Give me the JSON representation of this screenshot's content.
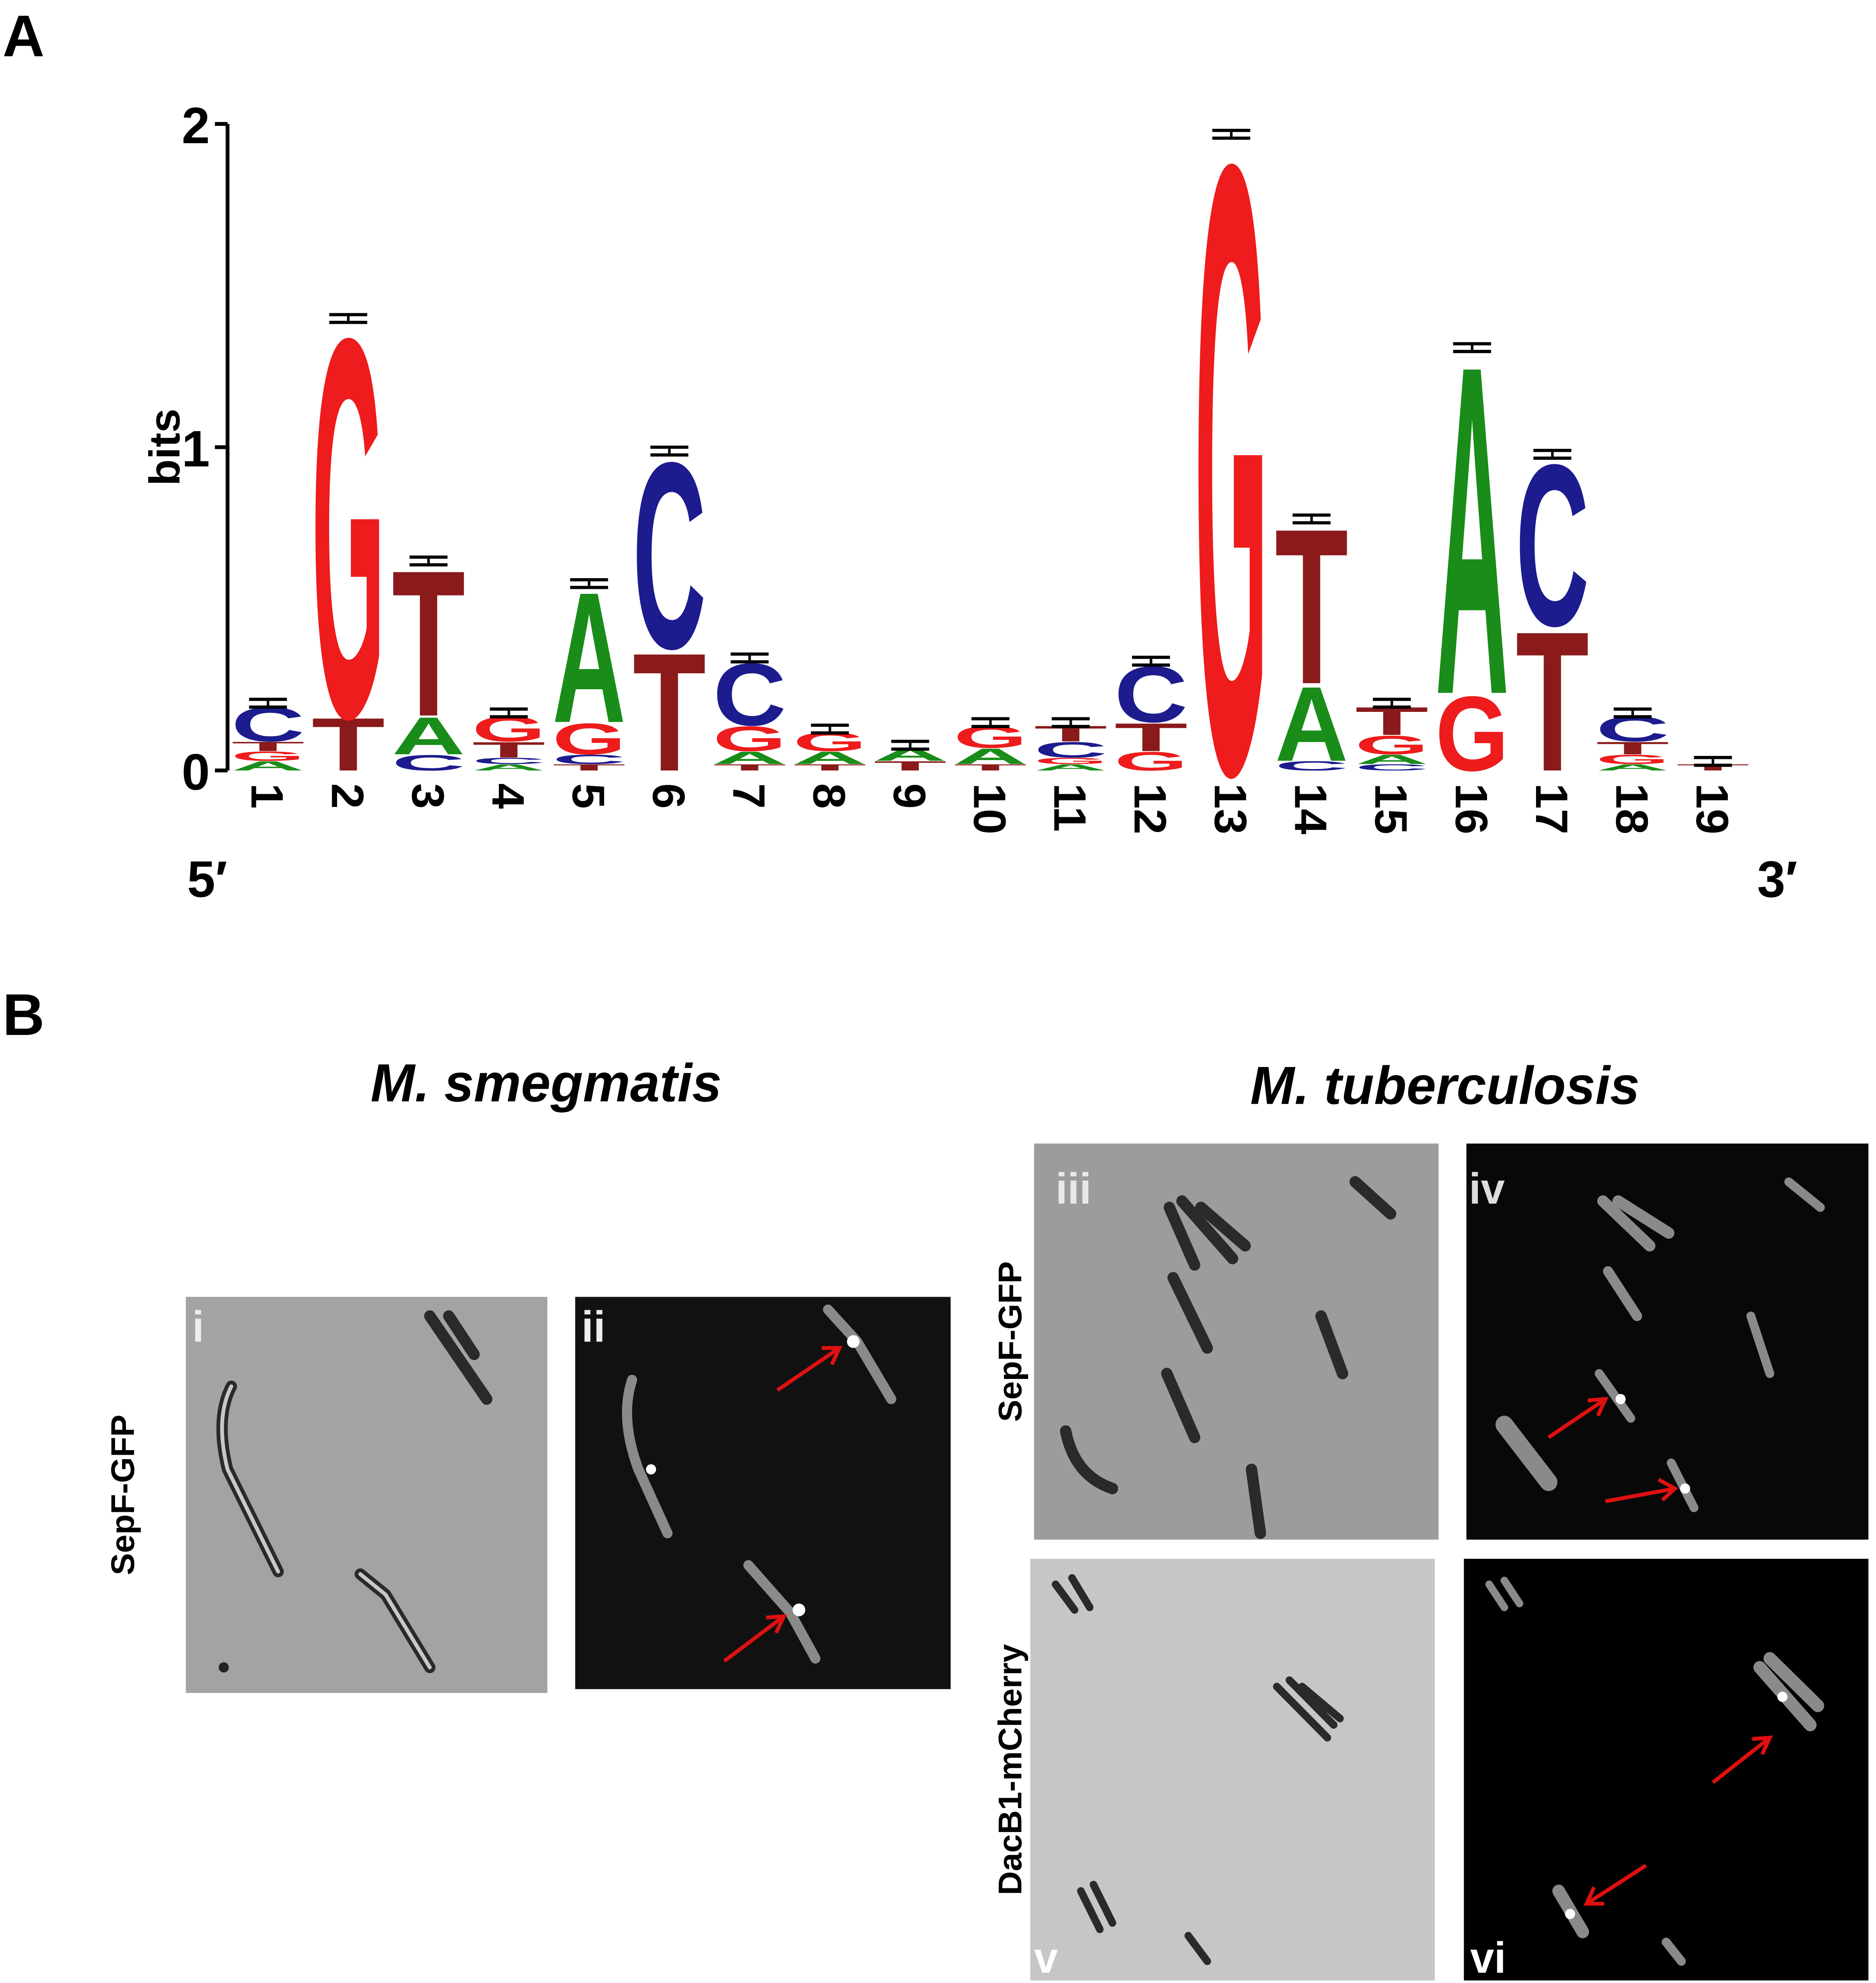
{
  "figure_labels": [
    "A",
    "B"
  ],
  "chart_data": {
    "type": "sequence-logo",
    "ylabel": "bits",
    "ylim": [
      0,
      2
    ],
    "yticks": [
      0,
      1,
      2
    ],
    "end_labels": [
      "5′",
      "3′"
    ],
    "categories": [
      "1",
      "2",
      "3",
      "4",
      "5",
      "6",
      "7",
      "8",
      "9",
      "10",
      "11",
      "12",
      "13",
      "14",
      "15",
      "16",
      "17",
      "18",
      "19"
    ],
    "series": [
      {
        "name": "A",
        "color": "#1a8c1a",
        "values": [
          0.03,
          0,
          0.12,
          0.02,
          0.42,
          0,
          0.04,
          0.04,
          0.04,
          0.05,
          0.02,
          0,
          0,
          0.24,
          0.03,
          1.06,
          0,
          0.02,
          0
        ]
      },
      {
        "name": "C",
        "color": "#1c1c8e",
        "values": [
          0.11,
          0,
          0.05,
          0.02,
          0.03,
          0.6,
          0.2,
          0,
          0,
          0,
          0.05,
          0.18,
          0,
          0.03,
          0.02,
          0,
          0.52,
          0.08,
          0
        ]
      },
      {
        "name": "G",
        "color": "#ee1c1c",
        "values": [
          0.03,
          1.22,
          0,
          0.08,
          0.1,
          0,
          0.08,
          0.06,
          0,
          0.07,
          0.02,
          0.06,
          1.96,
          0,
          0.06,
          0.24,
          0,
          0.03,
          0
        ]
      },
      {
        "name": "T",
        "color": "#8b1a1a",
        "values": [
          0.03,
          0.17,
          0.47,
          0.05,
          0.02,
          0.38,
          0.02,
          0.02,
          0.03,
          0.02,
          0.05,
          0.09,
          0,
          0.5,
          0.09,
          0,
          0.45,
          0.04,
          0.02
        ]
      }
    ],
    "errors": [
      0.02,
      0.02,
      0.02,
      0.02,
      0.02,
      0.02,
      0.02,
      0.02,
      0.02,
      0.02,
      0.02,
      0.02,
      0.02,
      0.02,
      0.02,
      0.02,
      0.02,
      0.02,
      0.02
    ]
  },
  "microscopy": {
    "titles": [
      "M. smegmatis",
      "M. tuberculosis"
    ],
    "row_labels": [
      "SepF-GFP",
      "SepF-GFP",
      "DacB1-mCherry"
    ],
    "panel_labels": [
      "i",
      "ii",
      "iii",
      "iv",
      "v",
      "vi"
    ]
  }
}
